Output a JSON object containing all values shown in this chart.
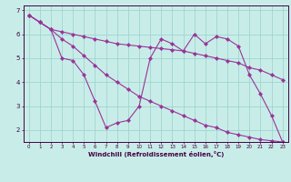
{
  "xlabel": "Windchill (Refroidissement éolien,°C)",
  "background_color": "#c8ede8",
  "grid_color": "#a0d4ce",
  "line_color": "#993399",
  "xlim": [
    -0.5,
    23.5
  ],
  "ylim": [
    1.5,
    7.2
  ],
  "xticks": [
    0,
    1,
    2,
    3,
    4,
    5,
    6,
    7,
    8,
    9,
    10,
    11,
    12,
    13,
    14,
    15,
    16,
    17,
    18,
    19,
    20,
    21,
    22,
    23
  ],
  "yticks": [
    2,
    3,
    4,
    5,
    6,
    7
  ],
  "line1_x": [
    0,
    1,
    2,
    3,
    4,
    5,
    6,
    7,
    8,
    9,
    10,
    11,
    12,
    13,
    14,
    15,
    16,
    17,
    18,
    19,
    20,
    21,
    22,
    23
  ],
  "line1_y": [
    6.8,
    6.5,
    6.2,
    6.1,
    6.0,
    5.9,
    5.8,
    5.7,
    5.6,
    5.55,
    5.5,
    5.45,
    5.4,
    5.35,
    5.3,
    5.2,
    5.1,
    5.0,
    4.9,
    4.8,
    4.6,
    4.5,
    4.3,
    4.1
  ],
  "line2_x": [
    0,
    1,
    2,
    3,
    4,
    5,
    6,
    7,
    8,
    9,
    10,
    11,
    12,
    13,
    14,
    15,
    16,
    17,
    18,
    19,
    20,
    21,
    22,
    23
  ],
  "line2_y": [
    6.8,
    6.5,
    6.2,
    5.8,
    5.5,
    5.1,
    4.7,
    4.3,
    4.0,
    3.7,
    3.4,
    3.2,
    3.0,
    2.8,
    2.6,
    2.4,
    2.2,
    2.1,
    1.9,
    1.8,
    1.7,
    1.6,
    1.55,
    1.5
  ],
  "line3_x": [
    0,
    1,
    2,
    3,
    4,
    5,
    6,
    7,
    8,
    9,
    10,
    11,
    12,
    13,
    14,
    15,
    16,
    17,
    18,
    19,
    20,
    21,
    22,
    23
  ],
  "line3_y": [
    6.8,
    6.5,
    6.2,
    5.0,
    4.9,
    4.3,
    3.2,
    2.1,
    2.3,
    2.4,
    3.0,
    5.0,
    5.8,
    5.6,
    5.3,
    6.0,
    5.6,
    5.9,
    5.8,
    5.5,
    4.3,
    3.5,
    2.6,
    1.5
  ]
}
